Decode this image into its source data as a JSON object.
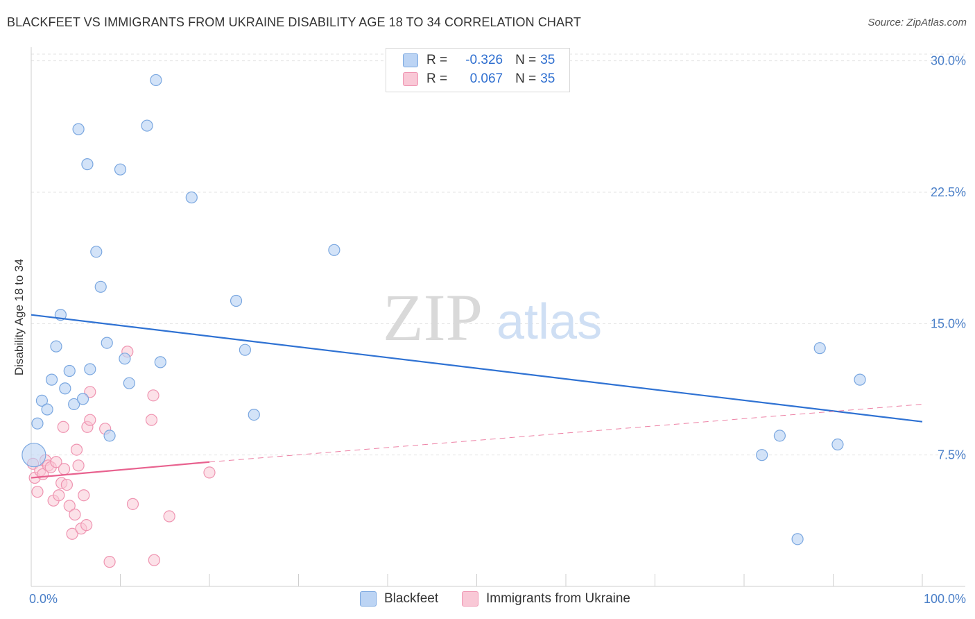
{
  "header": {
    "title": "BLACKFEET VS IMMIGRANTS FROM UKRAINE DISABILITY AGE 18 TO 34 CORRELATION CHART",
    "source": "Source: ZipAtlas.com"
  },
  "watermark": {
    "zip": "ZIP",
    "atlas": "atlas"
  },
  "colors": {
    "blackfeet_fill": "#bcd4f4",
    "blackfeet_stroke": "#7aa7e0",
    "blackfeet_line": "#2f72d3",
    "ukraine_fill": "#f9c8d6",
    "ukraine_stroke": "#ef94b1",
    "ukraine_line": "#e8628f",
    "tick_text": "#4a7fc8",
    "grid": "#e3e3e3"
  },
  "legend": {
    "rows": [
      {
        "r_label": "R =",
        "r_value": "-0.326",
        "n_label": "N =",
        "n_value": "35"
      },
      {
        "r_label": "R =",
        "r_value": "0.067",
        "n_label": "N =",
        "n_value": "35"
      }
    ]
  },
  "bottom_legend": [
    "Blackfeet",
    "Immigrants from Ukraine"
  ],
  "chart_data": {
    "type": "scatter",
    "title": "BLACKFEET VS IMMIGRANTS FROM UKRAINE DISABILITY AGE 18 TO 34 CORRELATION CHART",
    "ylabel": "Disability Age 18 to 34",
    "xlabel": "",
    "xlim": [
      0,
      100
    ],
    "ylim": [
      0,
      30.7
    ],
    "x_tick_labels": [
      {
        "value": 0,
        "label": "0.0%"
      },
      {
        "value": 100,
        "label": "100.0%"
      }
    ],
    "x_minor_ticks": [
      10,
      20,
      30,
      40,
      50,
      60,
      70,
      80,
      90,
      100
    ],
    "y_tick_labels": [
      {
        "value": 7.5,
        "label": "7.5%"
      },
      {
        "value": 15.0,
        "label": "15.0%"
      },
      {
        "value": 22.5,
        "label": "22.5%"
      },
      {
        "value": 30.0,
        "label": "30.0%"
      }
    ],
    "grid": true,
    "series": [
      {
        "name": "Blackfeet",
        "r": -0.326,
        "n": 35,
        "points": [
          [
            0.3,
            7.5
          ],
          [
            0.7,
            9.3
          ],
          [
            1.2,
            10.6
          ],
          [
            1.8,
            10.1
          ],
          [
            2.3,
            11.8
          ],
          [
            2.8,
            13.7
          ],
          [
            3.3,
            15.5
          ],
          [
            3.8,
            11.3
          ],
          [
            4.3,
            12.3
          ],
          [
            4.8,
            10.4
          ],
          [
            5.3,
            26.1
          ],
          [
            5.8,
            10.7
          ],
          [
            6.3,
            24.1
          ],
          [
            6.6,
            12.4
          ],
          [
            7.3,
            19.1
          ],
          [
            7.8,
            17.1
          ],
          [
            8.5,
            13.9
          ],
          [
            8.8,
            8.6
          ],
          [
            10.0,
            23.8
          ],
          [
            10.5,
            13.0
          ],
          [
            11.0,
            11.6
          ],
          [
            13.0,
            26.3
          ],
          [
            14.0,
            28.9
          ],
          [
            14.5,
            12.8
          ],
          [
            18.0,
            22.2
          ],
          [
            23.0,
            16.3
          ],
          [
            24.0,
            13.5
          ],
          [
            25.0,
            9.8
          ],
          [
            34.0,
            19.2
          ],
          [
            82.0,
            7.5
          ],
          [
            84.0,
            8.6
          ],
          [
            86.0,
            2.7
          ],
          [
            88.5,
            13.6
          ],
          [
            90.5,
            8.1
          ],
          [
            93.0,
            11.8
          ]
        ],
        "trend": {
          "x": [
            0,
            100
          ],
          "y": [
            15.5,
            9.4
          ]
        }
      },
      {
        "name": "Immigrants from Ukraine",
        "r": 0.067,
        "n": 35,
        "points": [
          [
            0.2,
            7.0
          ],
          [
            0.4,
            6.2
          ],
          [
            0.7,
            5.4
          ],
          [
            1.0,
            6.6
          ],
          [
            1.3,
            6.4
          ],
          [
            1.6,
            7.2
          ],
          [
            1.9,
            6.9
          ],
          [
            2.2,
            6.8
          ],
          [
            2.5,
            4.9
          ],
          [
            2.8,
            7.1
          ],
          [
            3.1,
            5.2
          ],
          [
            3.4,
            5.9
          ],
          [
            3.7,
            6.7
          ],
          [
            3.6,
            9.1
          ],
          [
            4.0,
            5.8
          ],
          [
            4.3,
            4.6
          ],
          [
            4.6,
            3.0
          ],
          [
            4.9,
            4.1
          ],
          [
            5.1,
            7.8
          ],
          [
            5.3,
            6.9
          ],
          [
            5.6,
            3.3
          ],
          [
            5.9,
            5.2
          ],
          [
            6.2,
            3.5
          ],
          [
            6.3,
            9.1
          ],
          [
            6.6,
            9.5
          ],
          [
            6.6,
            11.1
          ],
          [
            8.3,
            9.0
          ],
          [
            8.8,
            1.4
          ],
          [
            10.8,
            13.4
          ],
          [
            11.4,
            4.7
          ],
          [
            13.5,
            9.5
          ],
          [
            13.7,
            10.9
          ],
          [
            13.8,
            1.5
          ],
          [
            15.5,
            4.0
          ],
          [
            20.0,
            6.5
          ]
        ],
        "trend": {
          "x": [
            0,
            20
          ],
          "y": [
            6.2,
            7.1
          ]
        },
        "trend_extended": {
          "x": [
            20,
            100
          ],
          "y": [
            7.1,
            10.4
          ]
        }
      }
    ]
  }
}
